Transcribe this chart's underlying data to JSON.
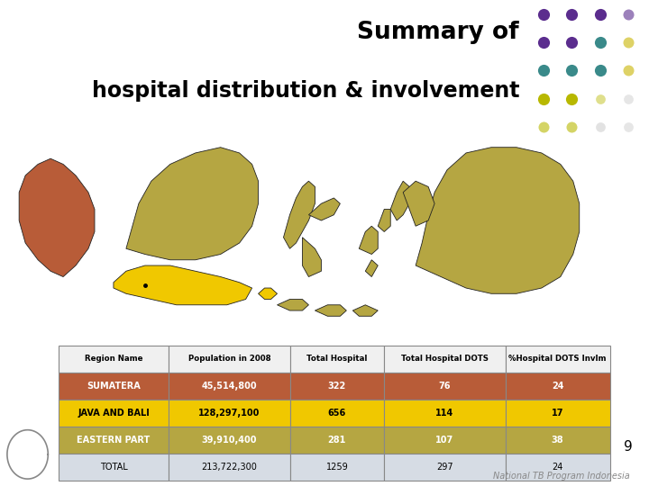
{
  "title_line1": "Summary of",
  "title_line2": "hospital distribution & involvement",
  "background_color": "#ffffff",
  "table_headers": [
    "Region Name",
    "Population in 2008",
    "Total Hospital",
    "Total Hospital DOTS",
    "%Hospital DOTS Invlm"
  ],
  "table_rows": [
    [
      "SUMATERA",
      "45,514,800",
      "322",
      "76",
      "24"
    ],
    [
      "JAVA AND BALI",
      "128,297,100",
      "656",
      "114",
      "17"
    ],
    [
      "EASTERN PART",
      "39,910,400",
      "281",
      "107",
      "38"
    ],
    [
      "TOTAL",
      "213,722,300",
      "1259",
      "297",
      "24"
    ]
  ],
  "row_colors": [
    "#b85c38",
    "#f0c800",
    "#b5a642",
    "#d6dce4"
  ],
  "header_bg": "#f0f0f0",
  "row_text_colors": [
    "#ffffff",
    "#000000",
    "#ffffff",
    "#000000"
  ],
  "footer_text": "National TB Program Indonesia",
  "page_number": "9",
  "dot_grid": [
    [
      "#5b2d8e",
      "#5b2d8e",
      "#5b2d8e",
      "#5b2d8e"
    ],
    [
      "#5b2d8e",
      "#5b2d8e",
      "#3a8a8a",
      "#c8b400"
    ],
    [
      "#3a8a8a",
      "#3a8a8a",
      "#3a8a8a",
      "#c8b400"
    ],
    [
      "#b8b800",
      "#b8b800",
      "#b8b800",
      "#c8c8c8"
    ],
    [
      "#b8b800",
      "#b8b800",
      "#c0c0c0",
      "#c8c8c8"
    ]
  ],
  "sumatera_color": "#b85c38",
  "java_color": "#f0c800",
  "eastern_color": "#b5a642",
  "edge_color": "#222222",
  "map_bg": "#ffffff"
}
